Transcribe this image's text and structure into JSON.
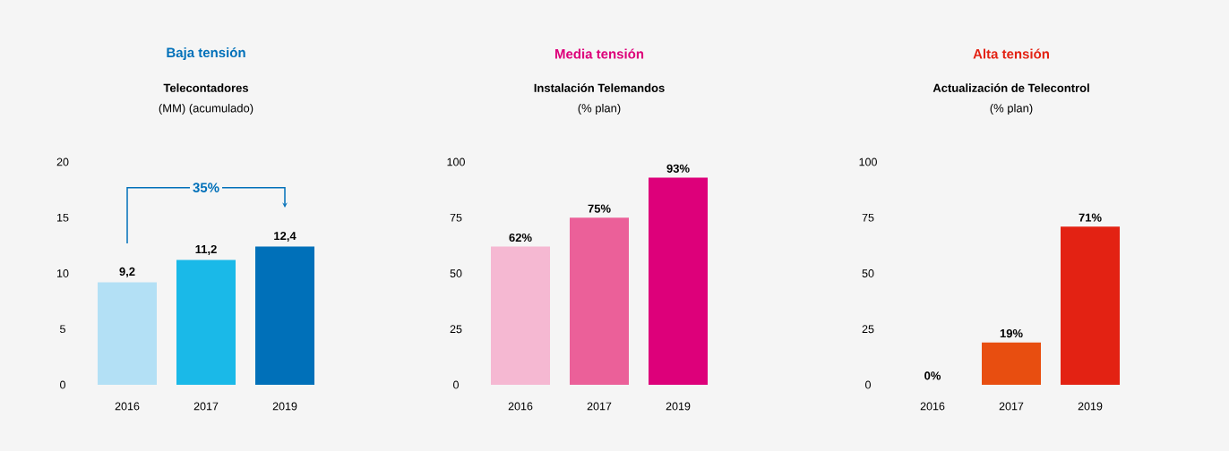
{
  "chart_data": [
    {
      "type": "bar",
      "title": "Baja tensión",
      "subtitle": "Telecontadores",
      "ylabel": "(MM) (acumulado)",
      "categories": [
        "2016",
        "2017",
        "2019"
      ],
      "values": [
        9.2,
        11.2,
        12.4
      ],
      "value_labels": [
        "9,2",
        "11,2",
        "12,4"
      ],
      "colors": [
        "#b3e0f5",
        "#1ab9e8",
        "#0070b9"
      ],
      "ylim": [
        0,
        20
      ],
      "yticks": [
        0,
        5,
        10,
        15,
        20
      ],
      "annotations": [
        "35%"
      ]
    },
    {
      "type": "bar",
      "title": "Media tensión",
      "subtitle": "Instalación Telemandos",
      "ylabel": "(% plan)",
      "categories": [
        "2016",
        "2017",
        "2019"
      ],
      "values": [
        62,
        75,
        93
      ],
      "value_labels": [
        "62%",
        "75%",
        "93%"
      ],
      "colors": [
        "#f5b8d2",
        "#eb6099",
        "#dd007a"
      ],
      "ylim": [
        0,
        100
      ],
      "yticks": [
        0,
        25,
        50,
        75,
        100
      ]
    },
    {
      "type": "bar",
      "title": "Alta tensión",
      "subtitle": "Actualización de Telecontrol",
      "ylabel": "(% plan)",
      "categories": [
        "2016",
        "2017",
        "2019"
      ],
      "values": [
        0,
        19,
        71
      ],
      "value_labels": [
        "0%",
        "19%",
        "71%"
      ],
      "colors": [
        "#f5b08a",
        "#e84e10",
        "#e32213"
      ],
      "ylim": [
        0,
        100
      ],
      "yticks": [
        0,
        25,
        50,
        75,
        100
      ]
    }
  ]
}
